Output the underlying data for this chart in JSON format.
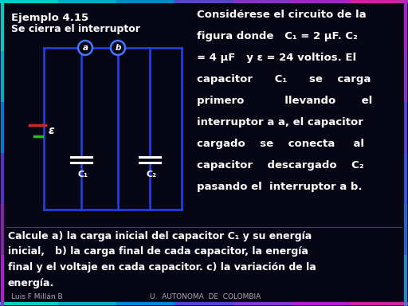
{
  "background_color": "#060614",
  "title1": "Ejemplo 4.15",
  "title2": "Se cierra el interruptor",
  "right_text": [
    [
      "Considérese el circuito de la",
      9.5
    ],
    [
      "figura donde   C₁ = 2 μF. C₂",
      9.5
    ],
    [
      "= 4 μF   y ε = 24 voltios. El",
      9.5
    ],
    [
      "capacitor      C₁      se    carga",
      9.5
    ],
    [
      "primero           llevando       el",
      9.5
    ],
    [
      "interruptor a a, el capacitor",
      9.5
    ],
    [
      "cargado    se    conecta     al",
      9.5
    ],
    [
      "capacitor    descargado    C₂",
      9.5
    ],
    [
      "pasando el  interruptor a b.",
      9.5
    ]
  ],
  "bottom_text": [
    "Calcule a) la carga inicial del capacitor C₁ y su energía",
    "inicial,   b) la carga final de cada capacitor, la energía",
    "final y el voltaje en cada capacitor. c) la variación de la",
    "energía."
  ],
  "footer_left": "Luis F Millán B",
  "footer_right": "U.  AUTONOMA  DE  COLOMBIA",
  "circuit_color": "#2244ee",
  "battery_red": "#dd2222",
  "battery_green": "#22bb22",
  "switch_circle_color": "#4477ff",
  "cap_color": "#ffffff",
  "text_color": "#ffffff",
  "footer_color": "#aaaaaa",
  "border_top": [
    "#00cccc",
    "#00aacc",
    "#0088cc",
    "#5544cc",
    "#8833cc",
    "#aa22cc",
    "#cc22aa"
  ],
  "border_bottom": [
    "#00cccc",
    "#00aacc",
    "#0088cc",
    "#5544cc",
    "#8833cc",
    "#aa22cc",
    "#cc22aa"
  ],
  "border_left": [
    "#00cccc",
    "#00aacc",
    "#0077cc",
    "#5533bb",
    "#8822aa",
    "#aa22cc"
  ],
  "border_right": [
    "#aa22cc",
    "#8833cc",
    "#5544cc",
    "#3355dd",
    "#2266cc",
    "#2288cc"
  ]
}
